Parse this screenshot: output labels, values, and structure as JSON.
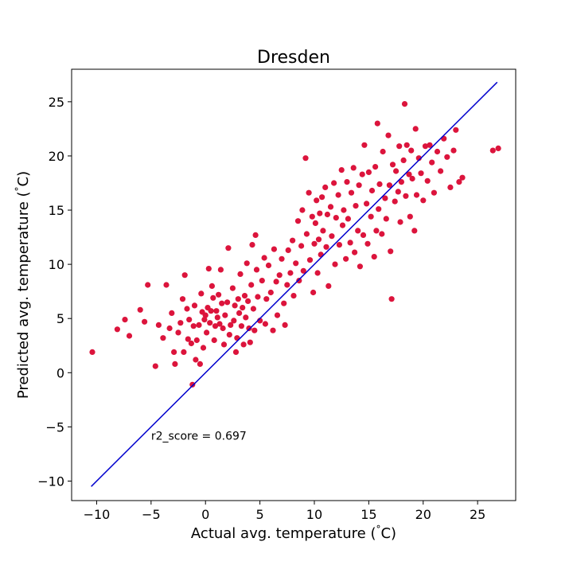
{
  "chart_data": {
    "type": "scatter",
    "title": "Dresden",
    "xlabel": "Actual avg. temperature ($^\\circ$C)",
    "ylabel": "Predicted avg. temperature ($^\\circ$C)",
    "xlabel_text": "Actual avg. temperature (",
    "xlabel_unit": "C)",
    "ylabel_text": "Predicted avg. temperature (",
    "ylabel_unit": "C)",
    "degree_symbol": "°",
    "xlim": [
      -12.3,
      28.5
    ],
    "ylim": [
      -11.8,
      28.0
    ],
    "xticks": [
      -10,
      -5,
      0,
      5,
      10,
      15,
      20,
      25
    ],
    "yticks": [
      -10,
      -5,
      0,
      5,
      10,
      15,
      20,
      25
    ],
    "xtick_labels": [
      "−10",
      "−5",
      "0",
      "5",
      "10",
      "15",
      "20",
      "25"
    ],
    "ytick_labels": [
      "−10",
      "−5",
      "0",
      "5",
      "10",
      "15",
      "20",
      "25"
    ],
    "grid": false,
    "annotation": "r2_score = 0.697",
    "annotation_at": [
      -5.0,
      -5.8
    ],
    "fit_line": {
      "x": [
        -10.5,
        26.8
      ],
      "y": [
        -10.5,
        26.8
      ]
    },
    "colors": {
      "points": "#dc143c",
      "line": "#0000cd"
    },
    "points": [
      [
        -10.4,
        1.9
      ],
      [
        -8.1,
        4.0
      ],
      [
        -7.4,
        4.9
      ],
      [
        -7.0,
        3.4
      ],
      [
        -6.0,
        5.8
      ],
      [
        -5.6,
        4.7
      ],
      [
        -5.3,
        8.1
      ],
      [
        -4.6,
        0.6
      ],
      [
        -4.3,
        4.4
      ],
      [
        -3.9,
        3.2
      ],
      [
        -3.6,
        8.1
      ],
      [
        -3.3,
        4.1
      ],
      [
        -3.1,
        5.5
      ],
      [
        -2.9,
        1.9
      ],
      [
        -2.8,
        0.8
      ],
      [
        -2.5,
        3.7
      ],
      [
        -2.3,
        4.6
      ],
      [
        -2.1,
        6.8
      ],
      [
        -2.0,
        1.9
      ],
      [
        -1.9,
        9.0
      ],
      [
        -1.7,
        5.9
      ],
      [
        -1.6,
        3.1
      ],
      [
        -1.5,
        4.9
      ],
      [
        -1.3,
        2.7
      ],
      [
        -1.2,
        -1.1
      ],
      [
        -1.1,
        4.3
      ],
      [
        -1.0,
        6.2
      ],
      [
        -0.9,
        1.2
      ],
      [
        -0.8,
        3.0
      ],
      [
        -0.6,
        4.4
      ],
      [
        -0.5,
        0.8
      ],
      [
        -0.4,
        7.3
      ],
      [
        -0.3,
        5.6
      ],
      [
        -0.2,
        2.3
      ],
      [
        -0.1,
        4.9
      ],
      [
        0.0,
        5.3
      ],
      [
        0.1,
        3.7
      ],
      [
        0.2,
        6.0
      ],
      [
        0.3,
        9.6
      ],
      [
        0.4,
        4.6
      ],
      [
        0.5,
        5.7
      ],
      [
        0.6,
        8.0
      ],
      [
        0.7,
        6.9
      ],
      [
        0.8,
        3.0
      ],
      [
        0.9,
        4.3
      ],
      [
        1.0,
        5.7
      ],
      [
        1.1,
        5.1
      ],
      [
        1.2,
        7.2
      ],
      [
        1.3,
        4.5
      ],
      [
        1.4,
        9.5
      ],
      [
        1.5,
        6.4
      ],
      [
        1.6,
        4.1
      ],
      [
        1.7,
        2.6
      ],
      [
        1.8,
        5.3
      ],
      [
        2.0,
        6.5
      ],
      [
        2.1,
        11.5
      ],
      [
        2.2,
        3.5
      ],
      [
        2.3,
        4.4
      ],
      [
        2.5,
        7.8
      ],
      [
        2.6,
        4.8
      ],
      [
        2.7,
        6.2
      ],
      [
        2.8,
        1.9
      ],
      [
        2.9,
        3.2
      ],
      [
        3.0,
        6.8
      ],
      [
        3.1,
        5.5
      ],
      [
        3.2,
        9.1
      ],
      [
        3.3,
        4.3
      ],
      [
        3.4,
        6.0
      ],
      [
        3.5,
        2.6
      ],
      [
        3.6,
        7.1
      ],
      [
        3.7,
        5.1
      ],
      [
        3.8,
        10.1
      ],
      [
        3.9,
        6.6
      ],
      [
        4.0,
        4.1
      ],
      [
        4.1,
        2.8
      ],
      [
        4.2,
        8.1
      ],
      [
        4.3,
        11.8
      ],
      [
        4.4,
        5.9
      ],
      [
        4.5,
        3.9
      ],
      [
        4.6,
        12.7
      ],
      [
        4.7,
        9.5
      ],
      [
        4.8,
        7.0
      ],
      [
        5.0,
        4.8
      ],
      [
        5.2,
        8.5
      ],
      [
        5.4,
        10.6
      ],
      [
        5.5,
        4.5
      ],
      [
        5.6,
        6.8
      ],
      [
        5.8,
        9.9
      ],
      [
        6.0,
        7.4
      ],
      [
        6.2,
        3.9
      ],
      [
        6.3,
        11.4
      ],
      [
        6.5,
        8.4
      ],
      [
        6.6,
        5.3
      ],
      [
        6.8,
        9.0
      ],
      [
        7.0,
        10.5
      ],
      [
        7.2,
        6.4
      ],
      [
        7.3,
        4.4
      ],
      [
        7.5,
        8.1
      ],
      [
        7.6,
        11.3
      ],
      [
        7.8,
        9.2
      ],
      [
        8.0,
        12.2
      ],
      [
        8.1,
        7.1
      ],
      [
        8.3,
        10.1
      ],
      [
        8.5,
        14.0
      ],
      [
        8.6,
        8.5
      ],
      [
        8.8,
        11.7
      ],
      [
        8.9,
        15.0
      ],
      [
        9.0,
        9.4
      ],
      [
        9.2,
        19.8
      ],
      [
        9.3,
        12.8
      ],
      [
        9.5,
        16.6
      ],
      [
        9.6,
        10.4
      ],
      [
        9.8,
        14.4
      ],
      [
        9.9,
        7.4
      ],
      [
        10.0,
        11.9
      ],
      [
        10.1,
        13.8
      ],
      [
        10.2,
        15.9
      ],
      [
        10.3,
        9.2
      ],
      [
        10.4,
        12.3
      ],
      [
        10.5,
        14.7
      ],
      [
        10.6,
        10.9
      ],
      [
        10.7,
        16.2
      ],
      [
        10.8,
        13.1
      ],
      [
        11.0,
        17.1
      ],
      [
        11.1,
        11.6
      ],
      [
        11.2,
        14.6
      ],
      [
        11.3,
        8.0
      ],
      [
        11.5,
        15.3
      ],
      [
        11.6,
        12.6
      ],
      [
        11.8,
        17.5
      ],
      [
        11.9,
        10.0
      ],
      [
        12.0,
        14.3
      ],
      [
        12.2,
        16.4
      ],
      [
        12.3,
        11.8
      ],
      [
        12.5,
        18.7
      ],
      [
        12.6,
        13.6
      ],
      [
        12.7,
        15.0
      ],
      [
        12.9,
        10.5
      ],
      [
        13.0,
        17.6
      ],
      [
        13.1,
        14.2
      ],
      [
        13.3,
        12.0
      ],
      [
        13.4,
        16.6
      ],
      [
        13.6,
        18.9
      ],
      [
        13.7,
        11.1
      ],
      [
        13.8,
        15.4
      ],
      [
        14.0,
        13.1
      ],
      [
        14.1,
        17.3
      ],
      [
        14.2,
        9.8
      ],
      [
        14.4,
        18.3
      ],
      [
        14.5,
        12.7
      ],
      [
        14.6,
        21.0
      ],
      [
        14.8,
        15.6
      ],
      [
        14.9,
        11.9
      ],
      [
        15.0,
        18.5
      ],
      [
        15.2,
        14.4
      ],
      [
        15.3,
        16.8
      ],
      [
        15.5,
        10.7
      ],
      [
        15.6,
        19.0
      ],
      [
        15.7,
        13.1
      ],
      [
        15.8,
        23.0
      ],
      [
        15.9,
        15.1
      ],
      [
        16.0,
        17.4
      ],
      [
        16.2,
        12.8
      ],
      [
        16.3,
        20.4
      ],
      [
        16.5,
        16.1
      ],
      [
        16.6,
        14.2
      ],
      [
        16.8,
        21.9
      ],
      [
        16.9,
        17.3
      ],
      [
        17.0,
        11.2
      ],
      [
        17.1,
        6.8
      ],
      [
        17.2,
        19.2
      ],
      [
        17.4,
        15.8
      ],
      [
        17.5,
        18.6
      ],
      [
        17.7,
        16.7
      ],
      [
        17.8,
        20.9
      ],
      [
        17.9,
        13.9
      ],
      [
        18.0,
        17.6
      ],
      [
        18.2,
        19.6
      ],
      [
        18.3,
        24.8
      ],
      [
        18.4,
        16.3
      ],
      [
        18.5,
        21.0
      ],
      [
        18.7,
        18.3
      ],
      [
        18.8,
        14.4
      ],
      [
        18.9,
        20.5
      ],
      [
        19.0,
        17.9
      ],
      [
        19.2,
        13.1
      ],
      [
        19.3,
        22.5
      ],
      [
        19.4,
        16.4
      ],
      [
        19.6,
        19.8
      ],
      [
        19.8,
        18.4
      ],
      [
        20.0,
        15.9
      ],
      [
        20.2,
        20.9
      ],
      [
        20.4,
        17.7
      ],
      [
        20.6,
        21.0
      ],
      [
        20.8,
        19.4
      ],
      [
        21.0,
        16.6
      ],
      [
        21.3,
        20.4
      ],
      [
        21.6,
        18.6
      ],
      [
        21.9,
        21.6
      ],
      [
        22.2,
        19.9
      ],
      [
        22.5,
        17.1
      ],
      [
        22.8,
        20.5
      ],
      [
        23.0,
        22.4
      ],
      [
        23.3,
        17.6
      ],
      [
        23.6,
        18.0
      ],
      [
        26.4,
        20.5
      ],
      [
        26.9,
        20.7
      ]
    ]
  }
}
